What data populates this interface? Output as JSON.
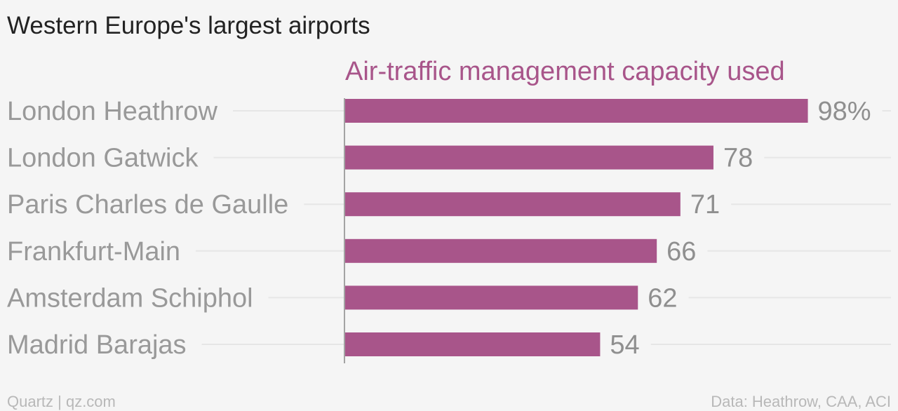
{
  "chart_data": {
    "type": "bar",
    "orientation": "horizontal",
    "title": "Western Europe's largest airports",
    "series": [
      {
        "name": "Air-traffic management capacity used",
        "color": "#a8558a",
        "values": [
          98,
          78,
          71,
          66,
          62,
          54
        ],
        "value_labels": [
          "98%",
          "78",
          "71",
          "66",
          "62",
          "54"
        ]
      }
    ],
    "categories": [
      "London Heathrow",
      "London Gatwick",
      "Paris Charles de Gaulle",
      "Frankfurt-Main",
      "Amsterdam Schiphol",
      "Madrid Barajas"
    ],
    "xlim": [
      0,
      100
    ],
    "grid": true,
    "legend": "top"
  },
  "footer": {
    "credit": "Quartz | qz.com",
    "source": "Data: Heathrow, CAA, ACI"
  }
}
